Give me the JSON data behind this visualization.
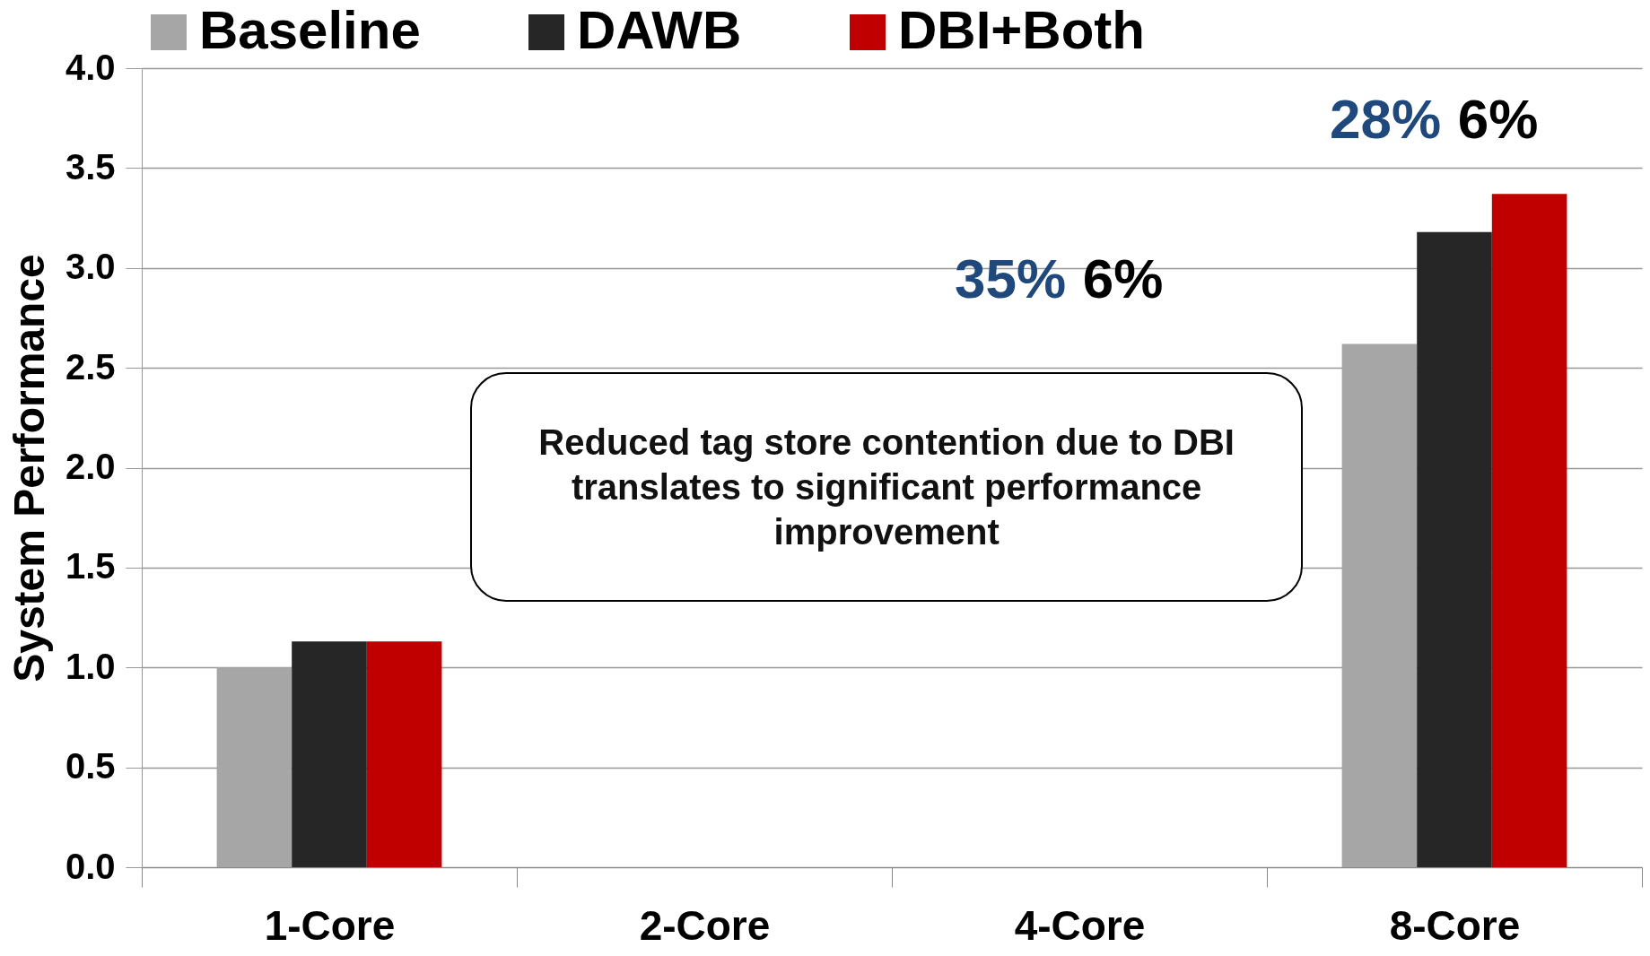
{
  "chart_data": {
    "type": "bar",
    "ylabel": "System Performance",
    "categories": [
      "1-Core",
      "2-Core",
      "4-Core",
      "8-Core"
    ],
    "series": [
      {
        "name": "Baseline",
        "color": "#a6a6a6",
        "values": [
          1.0,
          null,
          null,
          2.62
        ]
      },
      {
        "name": "DAWB",
        "color": "#262626",
        "values": [
          1.13,
          null,
          null,
          3.18
        ]
      },
      {
        "name": "DBI+Both",
        "color": "#c00000",
        "values": [
          1.13,
          null,
          null,
          3.37
        ]
      }
    ],
    "ylim": [
      0,
      4
    ],
    "yticks": [
      {
        "value": 0,
        "label": "0.0"
      },
      {
        "value": 0.5,
        "label": "0.5"
      },
      {
        "value": 1,
        "label": "1.0"
      },
      {
        "value": 1.5,
        "label": "1.5"
      },
      {
        "value": 2,
        "label": "2.0"
      },
      {
        "value": 2.5,
        "label": "2.5"
      },
      {
        "value": 3,
        "label": "3.0"
      },
      {
        "value": 3.5,
        "label": "3.5"
      },
      {
        "value": 4,
        "label": "4.0"
      }
    ],
    "grid": "y",
    "legend": "top",
    "annotations": [
      "Reduced tag store contention due to DBI translates to significant performance improvement",
      "35%",
      "6%",
      "28%",
      "6%"
    ]
  }
}
